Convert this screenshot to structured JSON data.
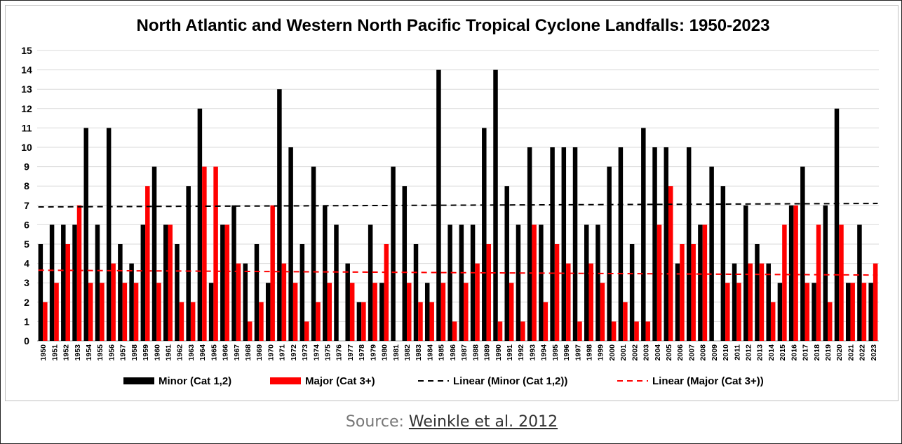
{
  "chart_data": {
    "type": "bar",
    "title": "North Atlantic and Western North Pacific Tropical Cyclone Landfalls: 1950-2023",
    "xlabel": "",
    "ylabel": "",
    "ylim": [
      0,
      15
    ],
    "yticks": [
      "0",
      "1",
      "2",
      "3",
      "4",
      "5",
      "6",
      "7",
      "8",
      "9",
      "10",
      "11",
      "12",
      "13",
      "14",
      "15"
    ],
    "grid": true,
    "legend_position": "bottom",
    "categories": [
      "1950",
      "1951",
      "1952",
      "1953",
      "1954",
      "1955",
      "1956",
      "1957",
      "1958",
      "1959",
      "1960",
      "1961",
      "1962",
      "1963",
      "1964",
      "1965",
      "1966",
      "1967",
      "1968",
      "1969",
      "1970",
      "1971",
      "1972",
      "1973",
      "1974",
      "1975",
      "1976",
      "1977",
      "1978",
      "1979",
      "1980",
      "1981",
      "1982",
      "1983",
      "1984",
      "1985",
      "1986",
      "1987",
      "1988",
      "1989",
      "1990",
      "1991",
      "1992",
      "1993",
      "1994",
      "1995",
      "1996",
      "1997",
      "1998",
      "1999",
      "2000",
      "2001",
      "2002",
      "2003",
      "2004",
      "2005",
      "2006",
      "2007",
      "2008",
      "2009",
      "2010",
      "2011",
      "2012",
      "2013",
      "2014",
      "2015",
      "2016",
      "2017",
      "2018",
      "2019",
      "2020",
      "2021",
      "2022",
      "2023"
    ],
    "series": [
      {
        "name": "Minor (Cat 1,2)",
        "color": "#000000",
        "values": [
          5,
          6,
          6,
          6,
          11,
          6,
          11,
          5,
          4,
          6,
          9,
          6,
          5,
          8,
          12,
          3,
          6,
          7,
          4,
          5,
          3,
          13,
          10,
          5,
          9,
          7,
          6,
          4,
          2,
          6,
          3,
          9,
          8,
          5,
          3,
          14,
          6,
          6,
          6,
          11,
          14,
          8,
          6,
          10,
          6,
          10,
          10,
          10,
          6,
          6,
          9,
          10,
          5,
          11,
          10,
          10,
          4,
          10,
          6,
          9,
          8,
          4,
          7,
          5,
          4,
          3,
          7,
          9,
          3,
          7,
          12,
          3,
          6,
          3
        ]
      },
      {
        "name": "Major (Cat 3+)",
        "color": "#ff0000",
        "values": [
          2,
          3,
          5,
          7,
          3,
          3,
          4,
          3,
          3,
          8,
          3,
          6,
          2,
          2,
          9,
          9,
          6,
          4,
          1,
          2,
          7,
          4,
          3,
          1,
          2,
          3,
          0,
          3,
          2,
          3,
          5,
          0,
          3,
          2,
          2,
          3,
          1,
          3,
          4,
          5,
          1,
          3,
          1,
          6,
          2,
          5,
          4,
          1,
          4,
          3,
          1,
          2,
          1,
          1,
          6,
          8,
          5,
          5,
          6,
          0,
          3,
          3,
          4,
          4,
          2,
          6,
          7,
          3,
          6,
          2,
          6,
          3,
          3,
          4
        ]
      }
    ],
    "trendlines": [
      {
        "name": "Linear (Minor (Cat 1,2))",
        "color": "#000000",
        "start": 6.92,
        "end": 7.1
      },
      {
        "name": "Linear (Major (Cat 3+))",
        "color": "#ff0000",
        "start": 3.65,
        "end": 3.4
      }
    ]
  },
  "source": {
    "prefix": "Source:",
    "link_text": "Weinkle et al. 2012"
  }
}
